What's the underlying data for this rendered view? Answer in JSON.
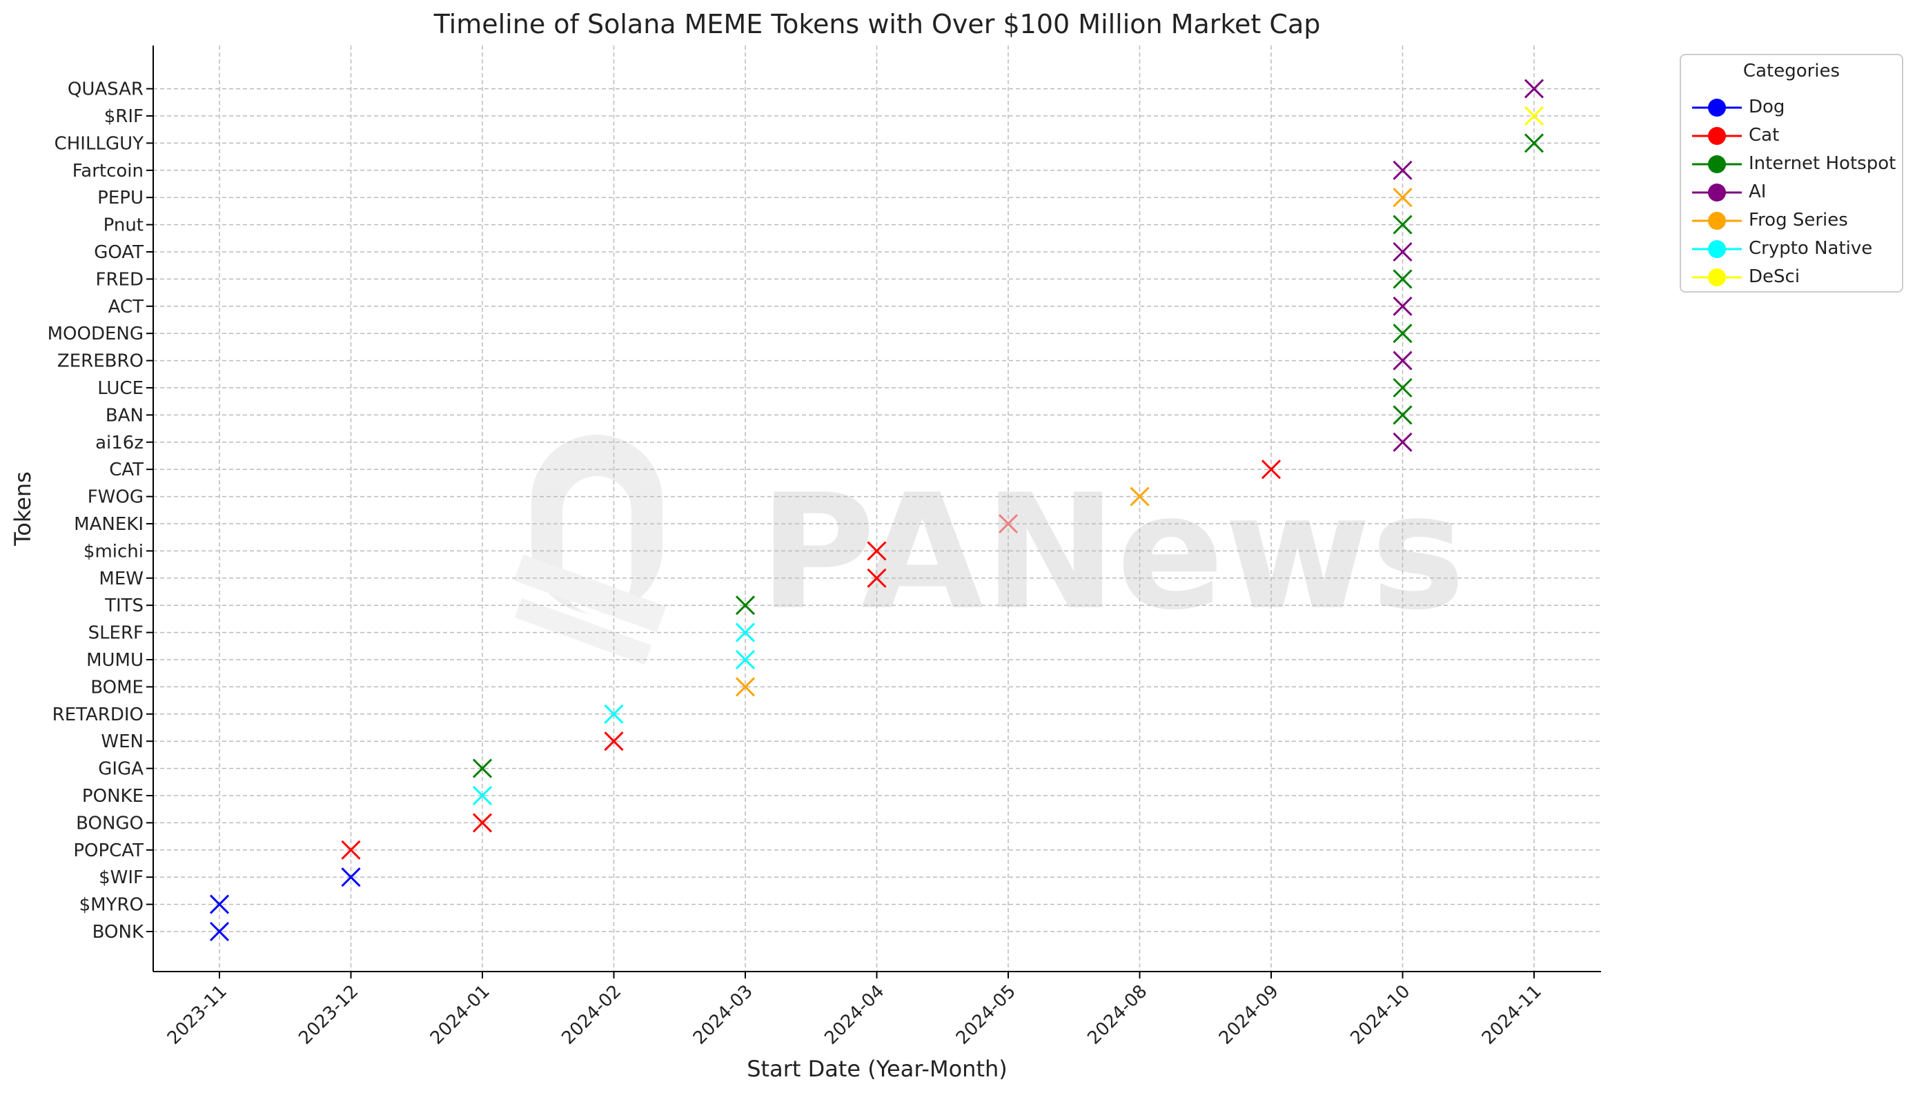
{
  "chart_data": {
    "type": "scatter",
    "title": "Timeline of Solana MEME Tokens with Over $100 Million Market Cap",
    "xlabel": "Start Date (Year-Month)",
    "ylabel": "Tokens",
    "x_ticks": [
      "2023-11",
      "2023-12",
      "2024-01",
      "2024-02",
      "2024-03",
      "2024-04",
      "2024-05",
      "2024-08",
      "2024-09",
      "2024-10",
      "2024-11"
    ],
    "y_ticks": [
      "BONK",
      "$MYRO",
      "$WIF",
      "POPCAT",
      "BONGO",
      "PONKE",
      "GIGA",
      "WEN",
      "RETARDIO",
      "BOME",
      "MUMU",
      "SLERF",
      "TITS",
      "MEW",
      "$michi",
      "MANEKI",
      "FWOG",
      "CAT",
      "ai16z",
      "BAN",
      "LUCE",
      "ZEREBRO",
      "MOODENG",
      "ACT",
      "FRED",
      "GOAT",
      "Pnut",
      "PEPU",
      "Fartcoin",
      "CHILLGUY",
      "$RIF",
      "QUASAR"
    ],
    "grid": true,
    "marker": "x",
    "legend": {
      "title": "Categories",
      "placement": "outside-top-right",
      "entries": [
        {
          "label": "Dog",
          "color": "#0000ff"
        },
        {
          "label": "Cat",
          "color": "#ff0000"
        },
        {
          "label": "Internet Hotspot",
          "color": "#008000"
        },
        {
          "label": "AI",
          "color": "#800080"
        },
        {
          "label": "Frog Series",
          "color": "#ffa500"
        },
        {
          "label": "Crypto Native",
          "color": "#00ffff"
        },
        {
          "label": "DeSci",
          "color": "#ffff00"
        }
      ]
    },
    "points": [
      {
        "token": "BONK",
        "date": "2023-11",
        "color": "#0000ff"
      },
      {
        "token": "$MYRO",
        "date": "2023-11",
        "color": "#0000ff"
      },
      {
        "token": "$WIF",
        "date": "2023-12",
        "color": "#0000ff"
      },
      {
        "token": "POPCAT",
        "date": "2023-12",
        "color": "#ff0000"
      },
      {
        "token": "BONGO",
        "date": "2024-01",
        "color": "#ff0000"
      },
      {
        "token": "PONKE",
        "date": "2024-01",
        "color": "#00ffff"
      },
      {
        "token": "GIGA",
        "date": "2024-01",
        "color": "#008000"
      },
      {
        "token": "WEN",
        "date": "2024-02",
        "color": "#ff0000"
      },
      {
        "token": "RETARDIO",
        "date": "2024-02",
        "color": "#00ffff"
      },
      {
        "token": "BOME",
        "date": "2024-03",
        "color": "#ffa500"
      },
      {
        "token": "MUMU",
        "date": "2024-03",
        "color": "#00ffff"
      },
      {
        "token": "SLERF",
        "date": "2024-03",
        "color": "#00ffff"
      },
      {
        "token": "TITS",
        "date": "2024-03",
        "color": "#008000"
      },
      {
        "token": "MEW",
        "date": "2024-04",
        "color": "#ff0000"
      },
      {
        "token": "$michi",
        "date": "2024-04",
        "color": "#ff0000"
      },
      {
        "token": "MANEKI",
        "date": "2024-05",
        "color": "#f08080"
      },
      {
        "token": "FWOG",
        "date": "2024-08",
        "color": "#ffa500"
      },
      {
        "token": "CAT",
        "date": "2024-09",
        "color": "#ff0000"
      },
      {
        "token": "ai16z",
        "date": "2024-10",
        "color": "#800080"
      },
      {
        "token": "BAN",
        "date": "2024-10",
        "color": "#008000"
      },
      {
        "token": "LUCE",
        "date": "2024-10",
        "color": "#008000"
      },
      {
        "token": "ZEREBRO",
        "date": "2024-10",
        "color": "#800080"
      },
      {
        "token": "MOODENG",
        "date": "2024-10",
        "color": "#008000"
      },
      {
        "token": "ACT",
        "date": "2024-10",
        "color": "#800080"
      },
      {
        "token": "FRED",
        "date": "2024-10",
        "color": "#008000"
      },
      {
        "token": "GOAT",
        "date": "2024-10",
        "color": "#800080"
      },
      {
        "token": "Pnut",
        "date": "2024-10",
        "color": "#008000"
      },
      {
        "token": "PEPU",
        "date": "2024-10",
        "color": "#ffa500"
      },
      {
        "token": "Fartcoin",
        "date": "2024-10",
        "color": "#800080"
      },
      {
        "token": "CHILLGUY",
        "date": "2024-11",
        "color": "#008000"
      },
      {
        "token": "$RIF",
        "date": "2024-11",
        "color": "#ffff00"
      },
      {
        "token": "QUASAR",
        "date": "2024-11",
        "color": "#800080"
      }
    ]
  },
  "watermark": {
    "text": "PANews"
  }
}
